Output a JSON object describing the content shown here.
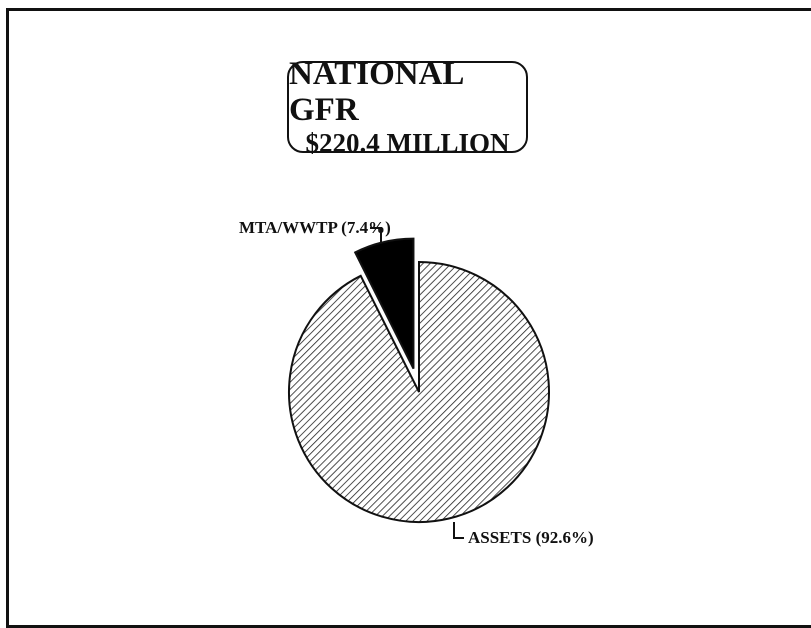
{
  "chart_data": {
    "type": "pie",
    "title": "NATIONAL GFR",
    "subtitle": "$220.4 MILLION",
    "slices": [
      {
        "label": "ASSETS (92.6%)",
        "value": 92.6,
        "exploded": false,
        "fill": "hatch"
      },
      {
        "label": "MTA/WWTP (7.4%)",
        "value": 7.4,
        "exploded": true,
        "fill": "#000000"
      }
    ]
  }
}
